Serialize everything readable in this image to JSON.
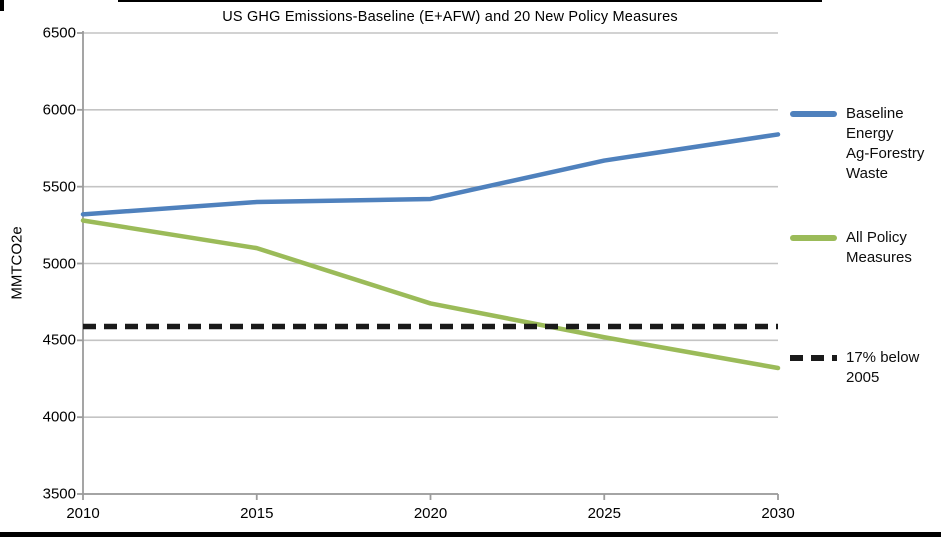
{
  "title": "US GHG Emissions-Baseline (E+AFW) and 20 New Policy Measures",
  "y_axis": {
    "label": "MMTCO2e",
    "ticks": [
      6500,
      6000,
      5500,
      5000,
      4500,
      4000,
      3500
    ]
  },
  "x_axis": {
    "ticks": [
      2010,
      2015,
      2020,
      2025,
      2030
    ]
  },
  "colors": {
    "background": "#ffffff",
    "gridline": "#c4c4c4",
    "axis": "#9b9b9b",
    "text": "#000000"
  },
  "legend": [
    {
      "name": "baseline",
      "label": "Baseline\nEnergy\nAg-Forestry\nWaste",
      "color": "#4f81bd",
      "style": "solid"
    },
    {
      "name": "policy",
      "label": "All Policy\nMeasures",
      "color": "#9bbb59",
      "style": "solid"
    },
    {
      "name": "target",
      "label": "17% below\n2005",
      "color": "#1a1a1a",
      "style": "dashed"
    }
  ],
  "chart_data": {
    "type": "line",
    "title": "US GHG Emissions-Baseline (E+AFW) and 20 New Policy Measures",
    "xlabel": "",
    "ylabel": "MMTCO2e",
    "x": [
      2010,
      2015,
      2020,
      2025,
      2030
    ],
    "series": [
      {
        "name": "Baseline Energy Ag-Forestry Waste",
        "values": [
          5320,
          5400,
          5420,
          5670,
          5840
        ],
        "color": "#4f81bd",
        "style": "solid"
      },
      {
        "name": "All Policy Measures",
        "values": [
          5280,
          5100,
          4740,
          4520,
          4320
        ],
        "color": "#9bbb59",
        "style": "solid"
      },
      {
        "name": "17% below 2005",
        "values": [
          4590,
          4590,
          4590,
          4590,
          4590
        ],
        "color": "#1a1a1a",
        "style": "dashed"
      }
    ],
    "xlim": [
      2010,
      2030
    ],
    "ylim": [
      3500,
      6500
    ],
    "y_tick_step": 500,
    "x_tick_step": 5,
    "grid": "horizontal",
    "legend_position": "right"
  }
}
